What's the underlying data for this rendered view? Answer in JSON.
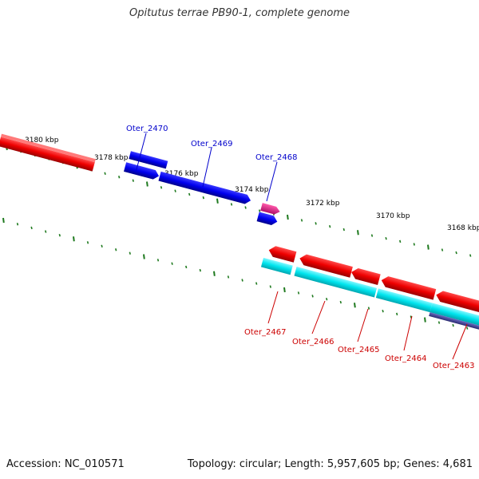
{
  "title": "Opitutus terrae PB90-1, complete genome",
  "footer": {
    "accession": "Accession: NC_010571",
    "topology": "Topology: circular; Length: 5,957,605 bp; Genes: 4,681"
  },
  "kbp_labels": [
    "3180 kbp",
    "3178 kbp",
    "3176 kbp",
    "3174 kbp",
    "3172 kbp",
    "3170 kbp",
    "3168 kbp"
  ],
  "genes_top": [
    "Oter_2470",
    "Oter_2469",
    "Oter_2468"
  ],
  "genes_bottom": [
    "Oter_2467",
    "Oter_2466",
    "Oter_2465",
    "Oter_2464",
    "Oter_2463"
  ],
  "colors": {
    "backbone": "#8a8a8a",
    "tick": "#1f7a1f",
    "forward_gene": "#0000ee",
    "forward_label": "#0000cc",
    "reverse_gene": "#ee0000",
    "reverse_label": "#cc0000",
    "rna_gene": "#e0208c",
    "cds_feature": "#00e5ee",
    "other_feature": "#4a4a9a"
  }
}
